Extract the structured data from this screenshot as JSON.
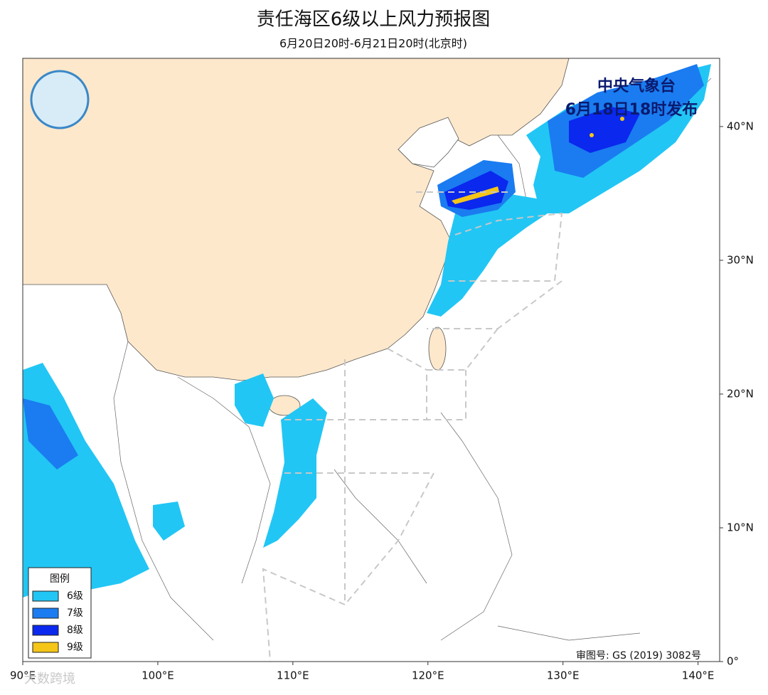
{
  "map": {
    "title": "责任海区6级以上风力预报图",
    "subtitle": "6月20日20时-6月21日20时(北京时)",
    "agency": "中央气象台",
    "issued": "6月18日18时发布",
    "review_number": "审图号: GS (2019) 3082号",
    "watermark": "大数跨境",
    "lonlim": [
      90,
      141.6
    ],
    "latlim": [
      0,
      45.1
    ],
    "xticks": [
      {
        "value": 90,
        "label": "90°E"
      },
      {
        "value": 100,
        "label": "100°E"
      },
      {
        "value": 110,
        "label": "110°E"
      },
      {
        "value": 120,
        "label": "120°E"
      },
      {
        "value": 130,
        "label": "130°E"
      },
      {
        "value": 140,
        "label": "140°E"
      }
    ],
    "yticks": [
      {
        "value": 0,
        "label": "0°"
      },
      {
        "value": 10,
        "label": "10°N"
      },
      {
        "value": 20,
        "label": "20°N"
      },
      {
        "value": 30,
        "label": "30°N"
      },
      {
        "value": 40,
        "label": "40°N"
      }
    ],
    "legend": {
      "title": "图例",
      "items": [
        {
          "label": "6级",
          "color": "#22c6f4"
        },
        {
          "label": "7级",
          "color": "#1a7cf0"
        },
        {
          "label": "8级",
          "color": "#0a28ee"
        },
        {
          "label": "9级",
          "color": "#f5c518"
        }
      ]
    }
  }
}
